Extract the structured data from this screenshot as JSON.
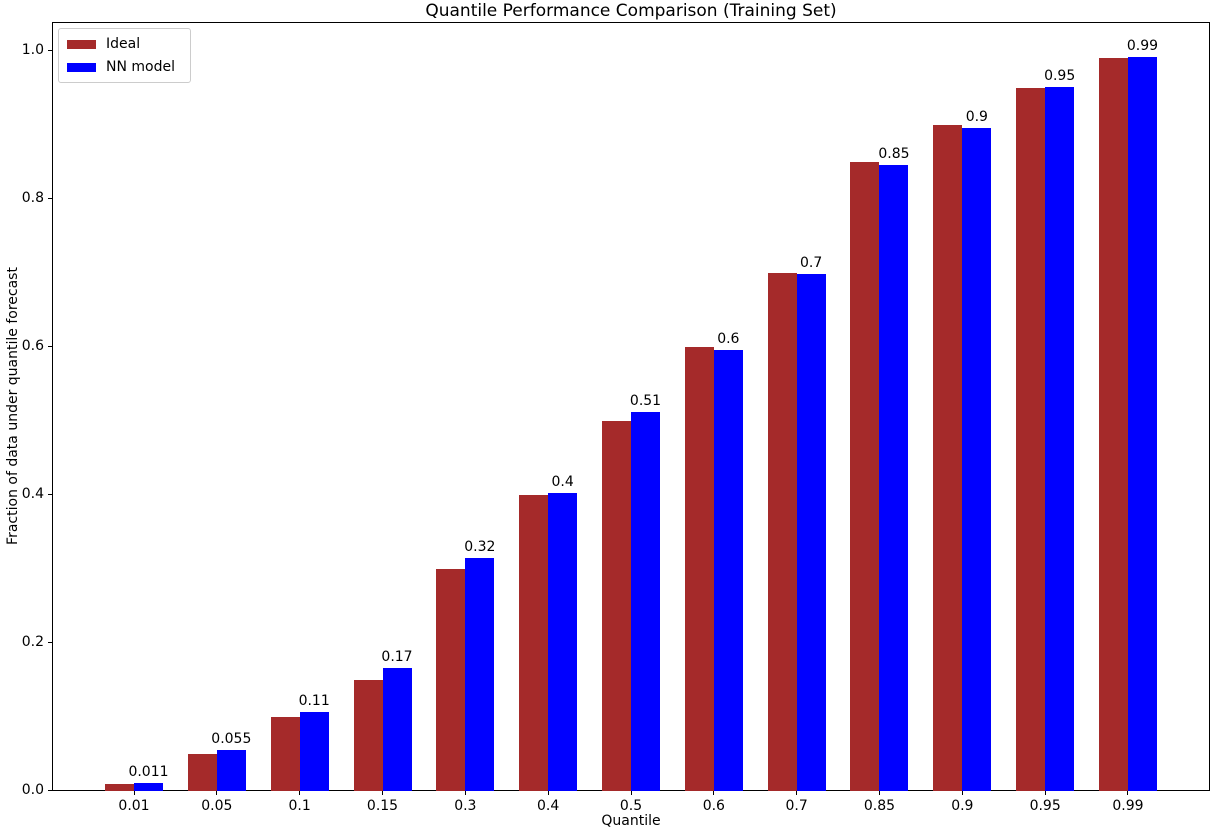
{
  "chart_data": {
    "type": "bar",
    "title": "Quantile Performance Comparison (Training Set)",
    "xlabel": "Quantile",
    "ylabel": "Fraction of data under quantile forecast",
    "categories": [
      "0.01",
      "0.05",
      "0.1",
      "0.15",
      "0.3",
      "0.4",
      "0.5",
      "0.6",
      "0.7",
      "0.85",
      "0.9",
      "0.95",
      "0.99"
    ],
    "series": [
      {
        "name": "Ideal",
        "color": "#A52A2A",
        "values": [
          0.01,
          0.05,
          0.1,
          0.15,
          0.3,
          0.4,
          0.5,
          0.6,
          0.7,
          0.85,
          0.9,
          0.95,
          0.99
        ]
      },
      {
        "name": "NN model",
        "color": "#0000FF",
        "values": [
          0.011,
          0.055,
          0.107,
          0.166,
          0.315,
          0.403,
          0.512,
          0.596,
          0.698,
          0.846,
          0.896,
          0.951,
          0.992
        ],
        "labels": [
          "0.011",
          "0.055",
          "0.11",
          "0.17",
          "0.32",
          "0.4",
          "0.51",
          "0.6",
          "0.7",
          "0.85",
          "0.9",
          "0.95",
          "0.99"
        ]
      }
    ],
    "yticks": [
      "0.0",
      "0.2",
      "0.4",
      "0.6",
      "0.8",
      "1.0"
    ],
    "ylim": [
      0,
      1.039
    ],
    "grid": false,
    "legend_position": "upper left",
    "bar_value_labels_on": "NN model"
  }
}
